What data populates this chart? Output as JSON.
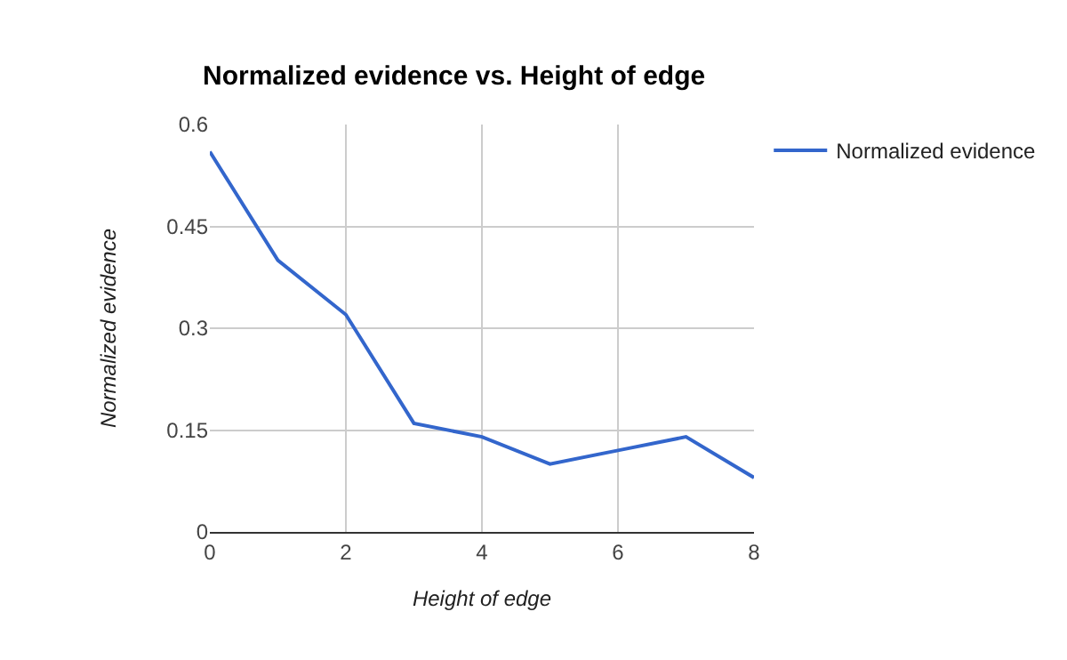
{
  "chart_data": {
    "type": "line",
    "title": "Normalized evidence vs. Height of edge",
    "xlabel": "Height of edge",
    "ylabel": "Normalized evidence",
    "x": [
      0,
      1,
      2,
      3,
      4,
      5,
      6,
      7,
      8
    ],
    "series": [
      {
        "name": "Normalized evidence",
        "color": "#3366cc",
        "values": [
          0.56,
          0.4,
          0.32,
          0.16,
          0.14,
          0.1,
          0.12,
          0.14,
          0.08
        ]
      }
    ],
    "xlim": [
      0,
      8
    ],
    "xticks": [
      0,
      2,
      4,
      6,
      8
    ],
    "ylim": [
      0,
      0.6
    ],
    "yticks": [
      0,
      0.15,
      0.3,
      0.45,
      0.6
    ],
    "grid": true,
    "legend": "top right",
    "marker": "none",
    "line_style": "solid"
  }
}
